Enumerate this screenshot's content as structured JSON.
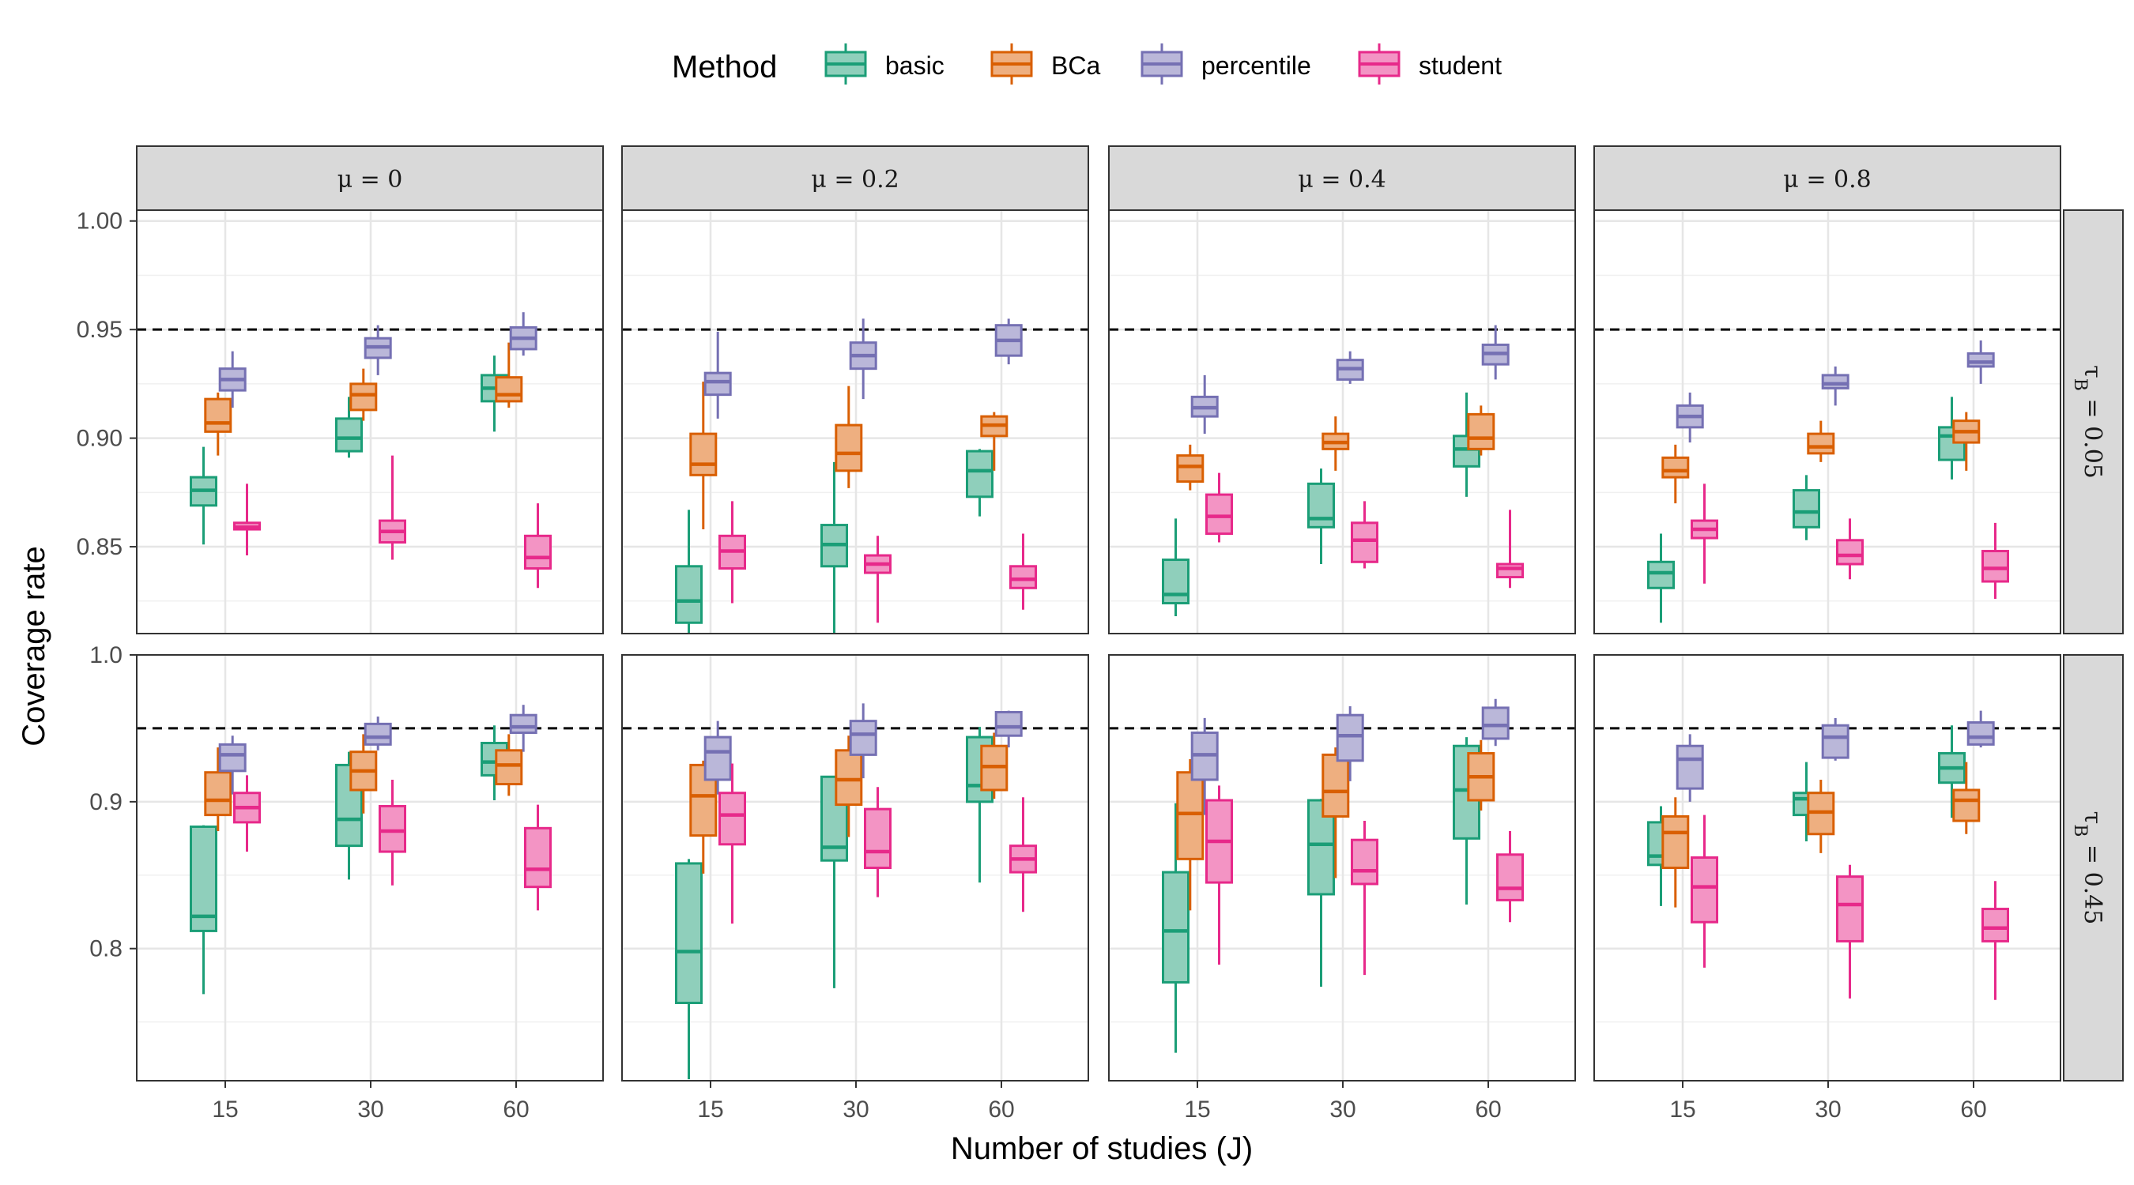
{
  "legend": {
    "title": "Method",
    "entries": [
      {
        "key": "basic",
        "label": "basic",
        "color": "#1b9e77",
        "fill": "#8fcfbb"
      },
      {
        "key": "bca",
        "label": "BCa",
        "color": "#d95f02",
        "fill": "#eeaf80"
      },
      {
        "key": "percentile",
        "label": "percentile",
        "color": "#7570b3",
        "fill": "#bab7d9"
      },
      {
        "key": "student",
        "label": "student",
        "color": "#e7298a",
        "fill": "#f394c4"
      }
    ]
  },
  "axes": {
    "xlabel": "Number of studies (J)",
    "ylabel": "Coverage rate"
  },
  "chart_data": {
    "type": "boxplot",
    "facet_columns": [
      "μ = 0",
      "μ = 0.2",
      "μ = 0.4",
      "μ = 0.8"
    ],
    "facet_rows": [
      {
        "label": "τ_B = 0.05",
        "ylim": [
          0.81,
          1.005
        ],
        "ticks": [
          0.85,
          0.9,
          0.95,
          1.0
        ],
        "tick_labels": [
          "0.85",
          "0.90",
          "0.95",
          "1.00"
        ]
      },
      {
        "label": "τ_B = 0.45",
        "ylim": [
          0.71,
          1.0
        ],
        "ticks": [
          0.8,
          0.9,
          1.0
        ],
        "tick_labels": [
          "0.8",
          "0.9",
          "1.0"
        ]
      }
    ],
    "categories": [
      "15",
      "30",
      "60"
    ],
    "reference_line": 0.95,
    "box_stat_order": [
      "whisker_low",
      "q1",
      "median",
      "q3",
      "whisker_high"
    ],
    "panels": [
      [
        {
          "basic": [
            [
              0.851,
              0.869,
              0.876,
              0.882,
              0.896
            ],
            [
              0.891,
              0.894,
              0.9,
              0.909,
              0.919
            ],
            [
              0.903,
              0.917,
              0.923,
              0.929,
              0.938
            ]
          ],
          "bca": [
            [
              0.892,
              0.903,
              0.907,
              0.918,
              0.921
            ],
            [
              0.908,
              0.913,
              0.92,
              0.925,
              0.932
            ],
            [
              0.914,
              0.917,
              0.92,
              0.928,
              0.944
            ]
          ],
          "percentile": [
            [
              0.914,
              0.922,
              0.927,
              0.932,
              0.94
            ],
            [
              0.929,
              0.937,
              0.942,
              0.946,
              0.952
            ],
            [
              0.938,
              0.941,
              0.946,
              0.951,
              0.958
            ]
          ],
          "student": [
            [
              0.846,
              0.858,
              0.859,
              0.861,
              0.879
            ],
            [
              0.844,
              0.852,
              0.857,
              0.862,
              0.892
            ],
            [
              0.831,
              0.84,
              0.845,
              0.855,
              0.87
            ]
          ]
        },
        {
          "basic": [
            [
              0.807,
              0.815,
              0.825,
              0.841,
              0.867
            ],
            [
              0.81,
              0.841,
              0.851,
              0.86,
              0.889
            ],
            [
              0.864,
              0.873,
              0.885,
              0.894,
              0.895
            ]
          ],
          "bca": [
            [
              0.858,
              0.883,
              0.888,
              0.902,
              0.926
            ],
            [
              0.877,
              0.885,
              0.893,
              0.906,
              0.924
            ],
            [
              0.885,
              0.901,
              0.906,
              0.91,
              0.912
            ]
          ],
          "percentile": [
            [
              0.909,
              0.92,
              0.926,
              0.93,
              0.949
            ],
            [
              0.918,
              0.932,
              0.938,
              0.944,
              0.955
            ],
            [
              0.934,
              0.938,
              0.945,
              0.952,
              0.955
            ]
          ],
          "student": [
            [
              0.824,
              0.84,
              0.848,
              0.855,
              0.871
            ],
            [
              0.815,
              0.838,
              0.842,
              0.846,
              0.855
            ],
            [
              0.821,
              0.831,
              0.835,
              0.841,
              0.856
            ]
          ]
        },
        {
          "basic": [
            [
              0.818,
              0.824,
              0.828,
              0.844,
              0.863
            ],
            [
              0.842,
              0.859,
              0.863,
              0.879,
              0.886
            ],
            [
              0.873,
              0.887,
              0.895,
              0.901,
              0.921
            ]
          ],
          "bca": [
            [
              0.876,
              0.88,
              0.887,
              0.892,
              0.897
            ],
            [
              0.885,
              0.895,
              0.898,
              0.902,
              0.91
            ],
            [
              0.892,
              0.895,
              0.9,
              0.911,
              0.915
            ]
          ],
          "percentile": [
            [
              0.902,
              0.91,
              0.914,
              0.919,
              0.929
            ],
            [
              0.925,
              0.927,
              0.932,
              0.936,
              0.94
            ],
            [
              0.927,
              0.934,
              0.939,
              0.943,
              0.952
            ]
          ],
          "student": [
            [
              0.852,
              0.856,
              0.864,
              0.874,
              0.884
            ],
            [
              0.84,
              0.843,
              0.853,
              0.861,
              0.871
            ],
            [
              0.831,
              0.836,
              0.84,
              0.842,
              0.867
            ]
          ]
        },
        {
          "basic": [
            [
              0.815,
              0.831,
              0.838,
              0.843,
              0.856
            ],
            [
              0.853,
              0.859,
              0.866,
              0.876,
              0.883
            ],
            [
              0.881,
              0.89,
              0.901,
              0.905,
              0.919
            ]
          ],
          "bca": [
            [
              0.87,
              0.882,
              0.885,
              0.891,
              0.897
            ],
            [
              0.889,
              0.893,
              0.896,
              0.902,
              0.908
            ],
            [
              0.885,
              0.898,
              0.903,
              0.908,
              0.912
            ]
          ],
          "percentile": [
            [
              0.898,
              0.905,
              0.91,
              0.915,
              0.921
            ],
            [
              0.915,
              0.923,
              0.925,
              0.929,
              0.933
            ],
            [
              0.925,
              0.933,
              0.935,
              0.939,
              0.945
            ]
          ],
          "student": [
            [
              0.833,
              0.854,
              0.858,
              0.862,
              0.879
            ],
            [
              0.835,
              0.842,
              0.846,
              0.853,
              0.863
            ],
            [
              0.826,
              0.834,
              0.84,
              0.848,
              0.861
            ]
          ]
        }
      ],
      [
        {
          "basic": [
            [
              0.769,
              0.812,
              0.822,
              0.883,
              0.884
            ],
            [
              0.847,
              0.87,
              0.888,
              0.925,
              0.934
            ],
            [
              0.901,
              0.918,
              0.927,
              0.94,
              0.952
            ]
          ],
          "bca": [
            [
              0.88,
              0.891,
              0.901,
              0.92,
              0.937
            ],
            [
              0.892,
              0.908,
              0.921,
              0.934,
              0.946
            ],
            [
              0.904,
              0.912,
              0.925,
              0.935,
              0.946
            ]
          ],
          "percentile": [
            [
              0.905,
              0.921,
              0.932,
              0.939,
              0.945
            ],
            [
              0.935,
              0.939,
              0.944,
              0.953,
              0.958
            ],
            [
              0.934,
              0.947,
              0.951,
              0.959,
              0.966
            ]
          ],
          "student": [
            [
              0.866,
              0.886,
              0.896,
              0.906,
              0.918
            ],
            [
              0.843,
              0.866,
              0.88,
              0.897,
              0.915
            ],
            [
              0.826,
              0.842,
              0.854,
              0.882,
              0.898
            ]
          ]
        },
        {
          "basic": [
            [
              0.711,
              0.763,
              0.798,
              0.858,
              0.861
            ],
            [
              0.773,
              0.86,
              0.869,
              0.917,
              0.917
            ],
            [
              0.845,
              0.9,
              0.911,
              0.944,
              0.951
            ]
          ],
          "bca": [
            [
              0.851,
              0.877,
              0.904,
              0.925,
              0.928
            ],
            [
              0.876,
              0.898,
              0.915,
              0.935,
              0.945
            ],
            [
              0.902,
              0.908,
              0.924,
              0.938,
              0.947
            ]
          ],
          "percentile": [
            [
              0.905,
              0.915,
              0.934,
              0.944,
              0.955
            ],
            [
              0.916,
              0.932,
              0.946,
              0.955,
              0.967
            ],
            [
              0.937,
              0.945,
              0.951,
              0.961,
              0.962
            ]
          ],
          "student": [
            [
              0.817,
              0.871,
              0.891,
              0.906,
              0.926
            ],
            [
              0.835,
              0.855,
              0.866,
              0.895,
              0.91
            ],
            [
              0.825,
              0.852,
              0.861,
              0.87,
              0.903
            ]
          ]
        },
        {
          "basic": [
            [
              0.729,
              0.777,
              0.812,
              0.852,
              0.899
            ],
            [
              0.774,
              0.837,
              0.871,
              0.901,
              0.902
            ],
            [
              0.83,
              0.875,
              0.908,
              0.938,
              0.944
            ]
          ],
          "bca": [
            [
              0.826,
              0.861,
              0.892,
              0.92,
              0.929
            ],
            [
              0.848,
              0.89,
              0.907,
              0.932,
              0.937
            ],
            [
              0.894,
              0.901,
              0.917,
              0.933,
              0.942
            ]
          ],
          "percentile": [
            [
              0.891,
              0.915,
              0.932,
              0.947,
              0.957
            ],
            [
              0.914,
              0.928,
              0.945,
              0.959,
              0.965
            ],
            [
              0.938,
              0.943,
              0.952,
              0.964,
              0.97
            ]
          ],
          "student": [
            [
              0.789,
              0.845,
              0.873,
              0.901,
              0.911
            ],
            [
              0.782,
              0.844,
              0.853,
              0.874,
              0.887
            ],
            [
              0.818,
              0.833,
              0.841,
              0.864,
              0.88
            ]
          ]
        },
        {
          "basic": [
            [
              0.829,
              0.857,
              0.863,
              0.886,
              0.897
            ],
            [
              0.873,
              0.891,
              0.902,
              0.906,
              0.927
            ],
            [
              0.889,
              0.913,
              0.923,
              0.933,
              0.952
            ]
          ],
          "bca": [
            [
              0.828,
              0.855,
              0.879,
              0.89,
              0.903
            ],
            [
              0.865,
              0.878,
              0.893,
              0.906,
              0.915
            ],
            [
              0.878,
              0.887,
              0.901,
              0.908,
              0.927
            ]
          ],
          "percentile": [
            [
              0.9,
              0.909,
              0.929,
              0.938,
              0.946
            ],
            [
              0.928,
              0.93,
              0.944,
              0.952,
              0.957
            ],
            [
              0.937,
              0.939,
              0.944,
              0.954,
              0.962
            ]
          ],
          "student": [
            [
              0.787,
              0.818,
              0.842,
              0.862,
              0.891
            ],
            [
              0.766,
              0.805,
              0.83,
              0.849,
              0.857
            ],
            [
              0.765,
              0.805,
              0.814,
              0.827,
              0.846
            ]
          ]
        }
      ]
    ]
  }
}
